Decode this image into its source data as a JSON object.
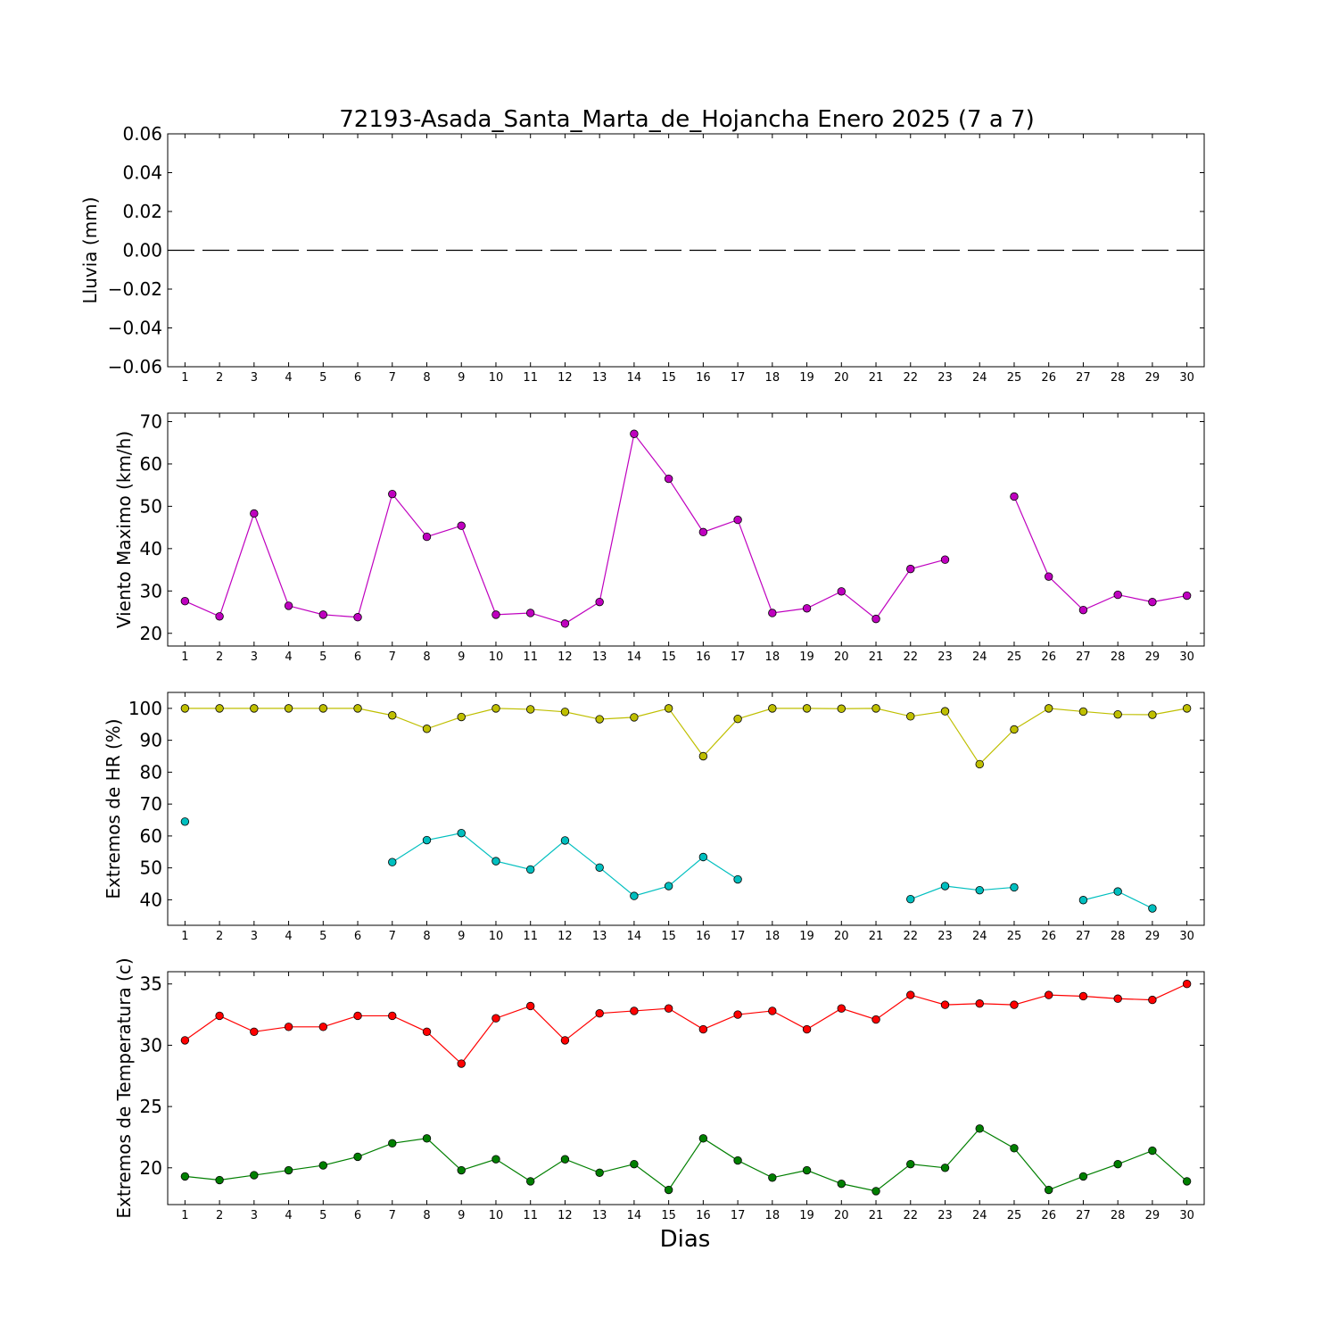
{
  "chart_data": {
    "title": "72193-Asada_Santa_Marta_de_Hojancha Enero 2025  (7 a 7)",
    "xlabel": "Dias",
    "x": [
      1,
      2,
      3,
      4,
      5,
      6,
      7,
      8,
      9,
      10,
      11,
      12,
      13,
      14,
      15,
      16,
      17,
      18,
      19,
      20,
      21,
      22,
      23,
      24,
      25,
      26,
      27,
      28,
      29,
      30
    ],
    "panels": [
      {
        "type": "line",
        "ylabel": "Lluvia (mm)",
        "ylim": [
          -0.06,
          0.06
        ],
        "yticks": [
          -0.06,
          -0.04,
          -0.02,
          0.0,
          0.02,
          0.04,
          0.06
        ],
        "ytick_labels": [
          "−0.06",
          "−0.04",
          "−0.02",
          "0.00",
          "0.02",
          "0.04",
          "0.06"
        ],
        "series": [
          {
            "color": "#000000",
            "style": "dashed",
            "marker": false,
            "values": [
              0,
              0,
              0,
              0,
              0,
              0,
              0,
              0,
              0,
              0,
              0,
              0,
              0,
              0,
              0,
              0,
              0,
              0,
              0,
              0,
              0,
              0,
              0,
              0,
              0,
              0,
              0,
              0,
              0,
              0
            ]
          }
        ]
      },
      {
        "type": "line",
        "ylabel": "Viento Maximo (km/h)",
        "ylim": [
          17,
          72
        ],
        "yticks": [
          20,
          30,
          40,
          50,
          60,
          70
        ],
        "ytick_labels": [
          "20",
          "30",
          "40",
          "50",
          "60",
          "70"
        ],
        "series": [
          {
            "color": "#bf00bf",
            "marker": true,
            "values": [
              27.6,
              24.0,
              48.3,
              26.5,
              24.4,
              23.8,
              52.9,
              42.8,
              45.4,
              24.4,
              24.8,
              22.3,
              27.4,
              67.1,
              56.5,
              43.9,
              46.8,
              24.8,
              25.9,
              29.9,
              23.4,
              35.2,
              37.4,
              null,
              52.3,
              33.4,
              25.5,
              29.1,
              27.4,
              28.9
            ]
          }
        ]
      },
      {
        "type": "line",
        "ylabel": "Extremos de HR (%)",
        "ylim": [
          32,
          105
        ],
        "yticks": [
          40,
          50,
          60,
          70,
          80,
          90,
          100
        ],
        "ytick_labels": [
          "40",
          "50",
          "60",
          "70",
          "80",
          "90",
          "100"
        ],
        "series": [
          {
            "color": "#bfbf00",
            "marker": true,
            "values": [
              100,
              100,
              100,
              100,
              100,
              100,
              97.8,
              93.6,
              97.3,
              100,
              99.7,
              98.9,
              96.6,
              97.2,
              100,
              85,
              96.7,
              100,
              100,
              99.9,
              100,
              97.5,
              99.1,
              82.5,
              93.4,
              100,
              99,
              98.1,
              98,
              100
            ]
          },
          {
            "color": "#00bfbf",
            "marker": true,
            "values": [
              64.5,
              null,
              null,
              null,
              null,
              null,
              51.8,
              58.7,
              60.9,
              52.1,
              49.5,
              58.6,
              50.1,
              41.2,
              44.3,
              53.4,
              46.4,
              null,
              null,
              null,
              null,
              40.2,
              44.3,
              43.0,
              43.9,
              null,
              39.9,
              42.6,
              37.3,
              null
            ]
          }
        ]
      },
      {
        "type": "line",
        "ylabel": "Extremos de Temperatura (c)",
        "ylim": [
          17,
          36
        ],
        "yticks": [
          20,
          25,
          30,
          35
        ],
        "ytick_labels": [
          "20",
          "25",
          "30",
          "35"
        ],
        "series": [
          {
            "color": "#ff0000",
            "marker": true,
            "values": [
              30.4,
              32.4,
              31.1,
              31.5,
              31.5,
              32.4,
              32.4,
              31.1,
              28.5,
              32.2,
              33.2,
              30.4,
              32.6,
              32.8,
              33.0,
              31.3,
              32.5,
              32.8,
              31.3,
              33.0,
              32.1,
              34.1,
              33.3,
              33.4,
              33.3,
              34.1,
              34.0,
              33.8,
              33.7,
              35.0
            ]
          },
          {
            "color": "#007f00",
            "marker": true,
            "values": [
              19.3,
              19.0,
              19.4,
              19.8,
              20.2,
              20.9,
              22.0,
              22.4,
              19.8,
              20.7,
              18.9,
              20.7,
              19.6,
              20.3,
              18.2,
              22.4,
              20.6,
              19.2,
              19.8,
              18.7,
              18.1,
              20.3,
              20.0,
              23.2,
              21.6,
              18.2,
              19.3,
              20.3,
              21.4,
              18.9
            ]
          }
        ]
      }
    ]
  }
}
